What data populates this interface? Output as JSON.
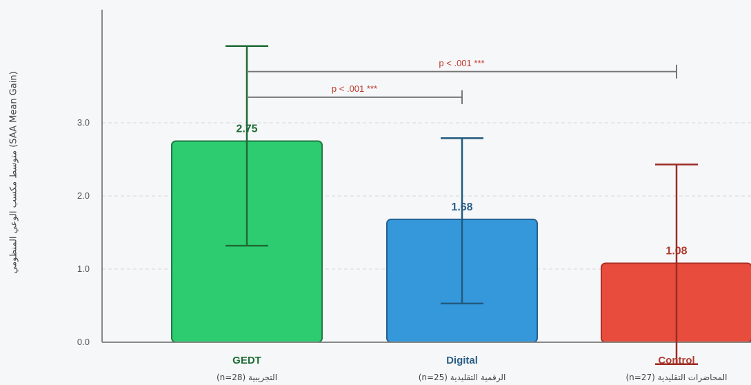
{
  "chart_data": {
    "type": "bar",
    "ylabel": "متوسط مكسب الوعي المنظومي (SAA Mean Gain)",
    "ylim": [
      0,
      4.5
    ],
    "yticks": [
      "0.0",
      "1.0",
      "2.0",
      "3.0"
    ],
    "grid": "horizontal dashed",
    "categories": [
      {
        "name": "GEDT",
        "sub": "(n=28) التجريبية",
        "value": 2.75,
        "value_label": "2.75",
        "err_low": 1.32,
        "err_high": 4.05,
        "color": "#2ecc71",
        "border": "#1f7a44",
        "text": "#1e6b35",
        "err_color": "#1e6b35"
      },
      {
        "name": "Digital",
        "sub": "(n=25) الرقمية التقليدية",
        "value": 1.68,
        "value_label": "1.68",
        "err_low": 0.53,
        "err_high": 2.79,
        "color": "#3498db",
        "border": "#25608f",
        "text": "#2a5f86",
        "err_color": "#225a7e"
      },
      {
        "name": "Control",
        "sub": "(n=27) المحاضرات التقليدية",
        "value": 1.08,
        "value_label": "1.08",
        "err_low": -0.3,
        "err_high": 2.43,
        "color": "#e74c3c",
        "border": "#a93226",
        "text": "#b03a2e",
        "err_color": "#9b2c24"
      }
    ],
    "comparisons": [
      {
        "from": "GEDT",
        "to": "Digital",
        "label": "p < .001 ***",
        "y": 3.35
      },
      {
        "from": "GEDT",
        "to": "Control",
        "label": "p < .001 ***",
        "y": 3.7
      }
    ],
    "colors": {
      "axis": "#888888",
      "grid": "#dddddd",
      "annotation": "#c0392b",
      "bracket": "#777777",
      "tick": "#555555"
    }
  }
}
